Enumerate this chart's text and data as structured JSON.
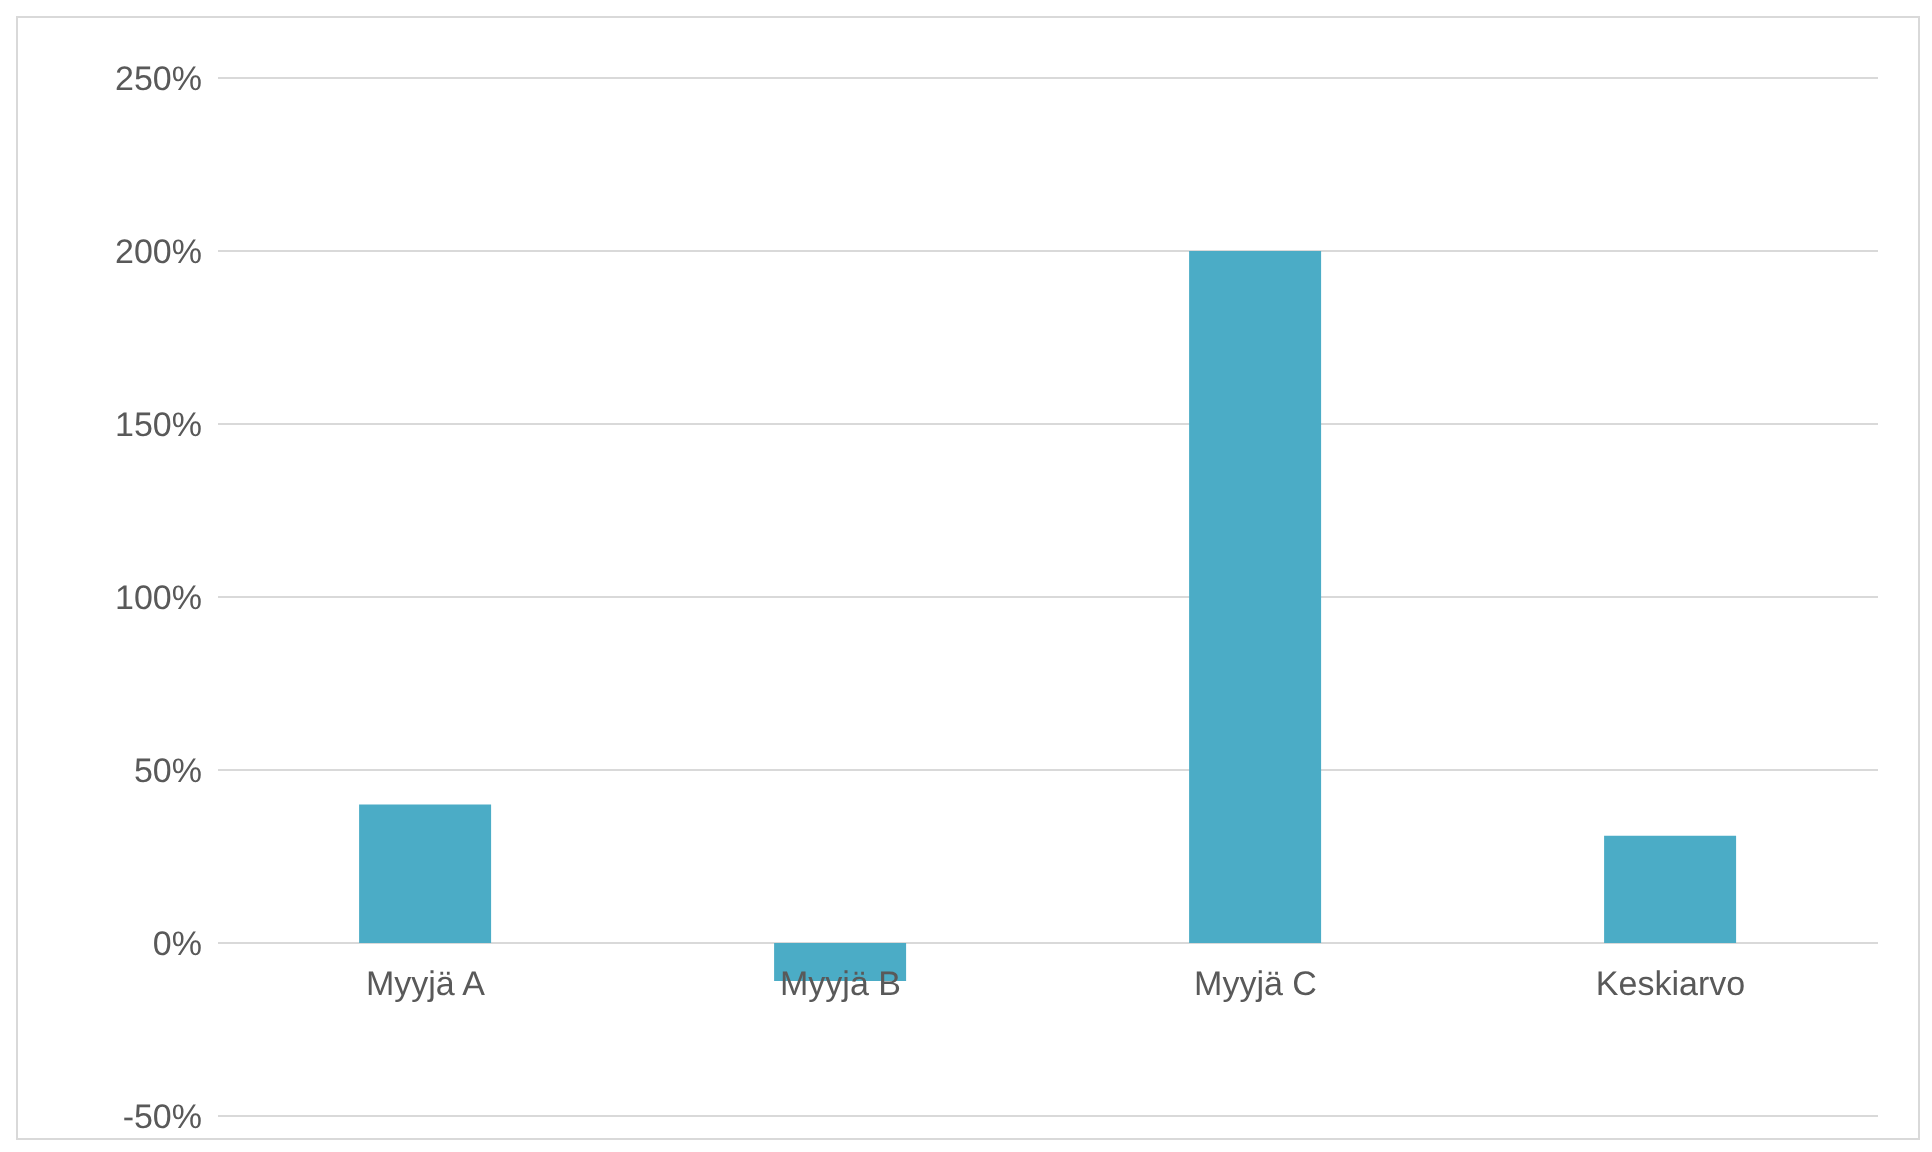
{
  "chart_data": {
    "type": "bar",
    "categories": [
      "Myyjä A",
      "Myyjä B",
      "Myyjä C",
      "Keskiarvo"
    ],
    "values": [
      40,
      -11,
      200,
      31
    ],
    "color": "#4bacc6",
    "ylim": [
      -50,
      250
    ],
    "yticks": [
      {
        "value": -50,
        "label": "-50%"
      },
      {
        "value": 0,
        "label": "0%"
      },
      {
        "value": 50,
        "label": "50%"
      },
      {
        "value": 100,
        "label": "100%"
      },
      {
        "value": 150,
        "label": "150%"
      },
      {
        "value": 200,
        "label": "200%"
      },
      {
        "value": 250,
        "label": "250%"
      }
    ],
    "grid": "y",
    "legend": false
  }
}
